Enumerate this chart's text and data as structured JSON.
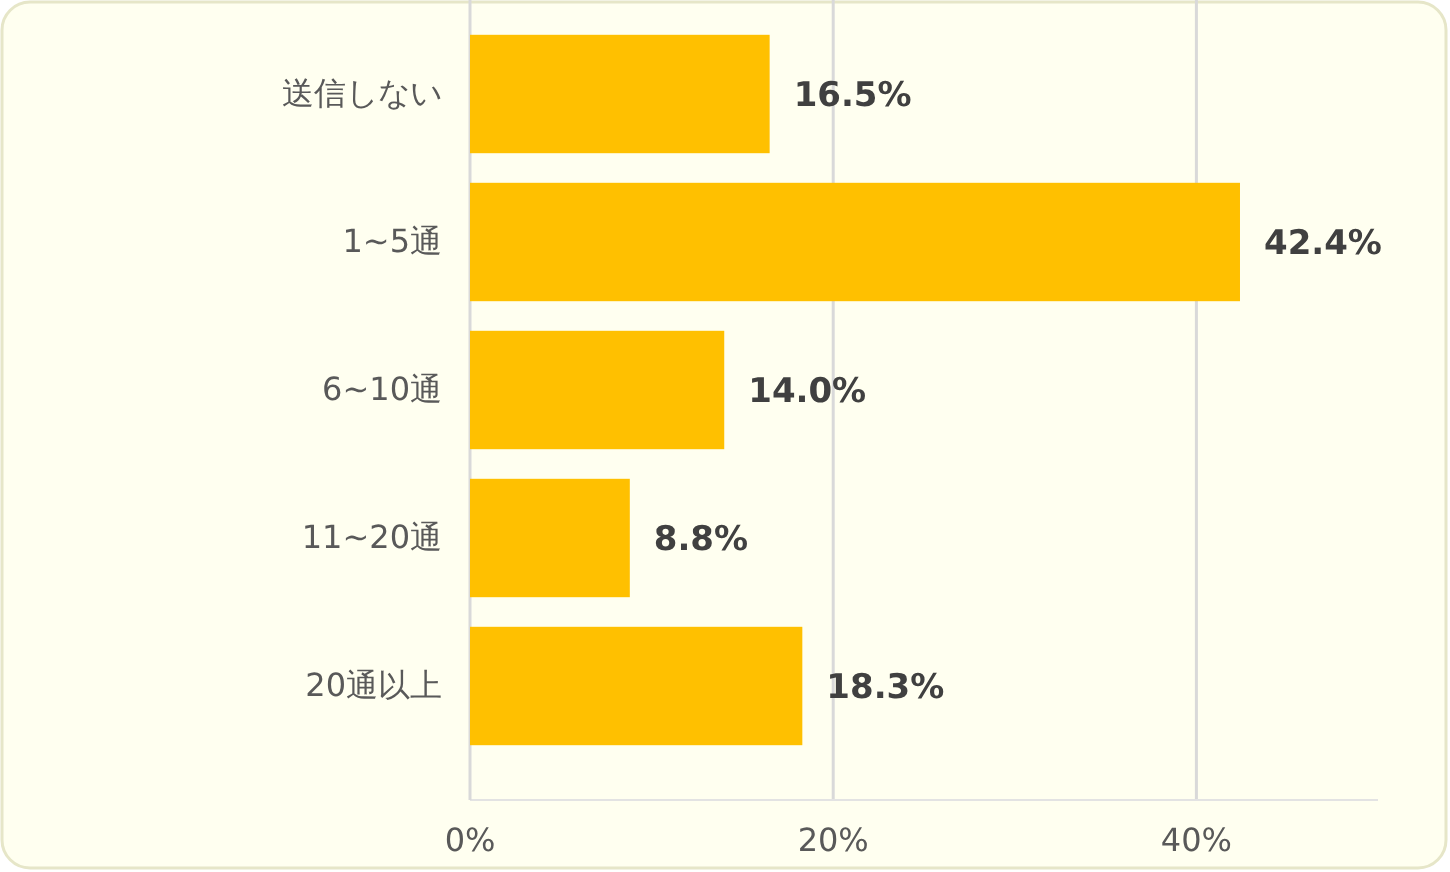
{
  "chart_data": {
    "type": "bar",
    "orientation": "horizontal",
    "categories": [
      "送信しない",
      "1~5通",
      "6~10通",
      "11~20通",
      "20通以上"
    ],
    "values": [
      16.5,
      42.4,
      14.0,
      8.8,
      18.3
    ],
    "value_labels": [
      "16.5%",
      "42.4%",
      "14.0%",
      "8.8%",
      "18.3%"
    ],
    "color": "#ffc000",
    "xlim": [
      0,
      50
    ],
    "xticks": [
      {
        "value": 0,
        "label": "0%"
      },
      {
        "value": 20,
        "label": "20%"
      },
      {
        "value": 40,
        "label": "40%"
      }
    ],
    "grid": "x"
  }
}
